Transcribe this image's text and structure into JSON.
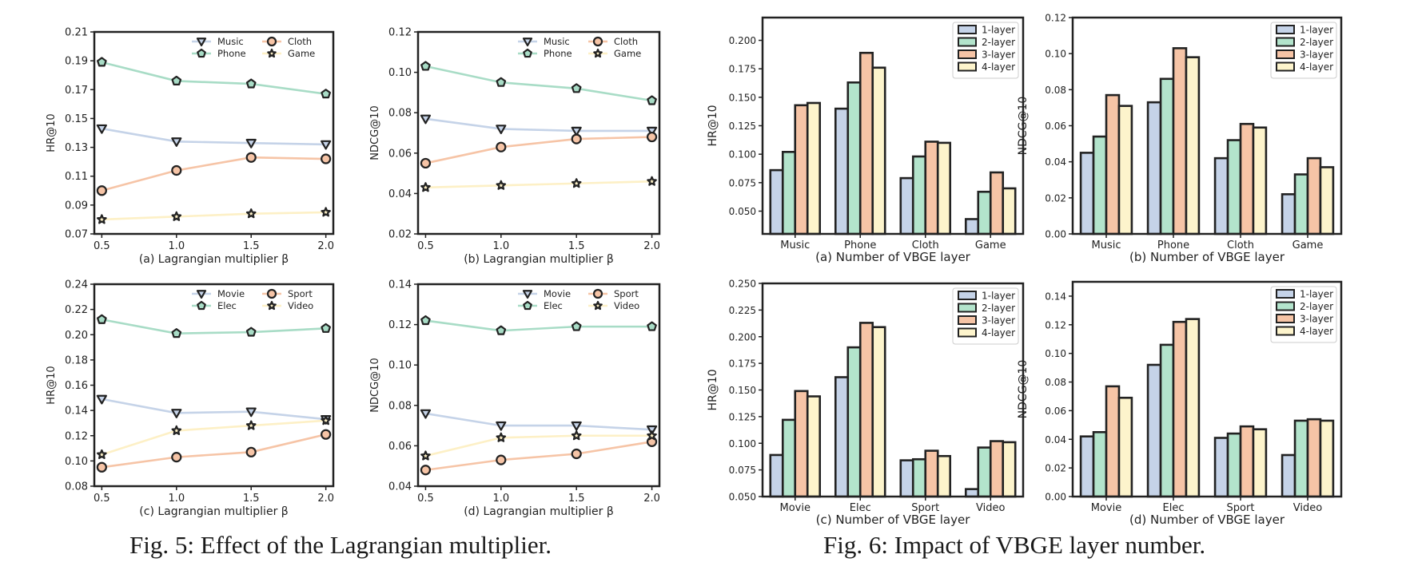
{
  "captions": {
    "fig5": "Fig. 5: Effect of the Lagrangian multiplier.",
    "fig6": "Fig. 6: Impact of VBGE layer number."
  },
  "colors": {
    "Music": "#c5d3e8",
    "Movie": "#c5d3e8",
    "Phone": "#a8dcc6",
    "Elec": "#a8dcc6",
    "Cloth": "#f6c4a6",
    "Sport": "#f6c4a6",
    "Game": "#fdf0c6",
    "Video": "#fdf0c6",
    "1-layer": "#c5d3e8",
    "2-layer": "#b3e4cc",
    "3-layer": "#f6c4a6",
    "4-layer": "#fdf4cc",
    "edge": "#222222"
  },
  "chart_data": [
    {
      "type": "line",
      "title": "(a) Lagrangian multiplier β",
      "xlabel": "(a) Lagrangian multiplier β",
      "ylabel": "HR@10",
      "x": [
        0.5,
        1.0,
        1.5,
        2.0
      ],
      "xticks": [
        "0.5",
        "1.0",
        "1.5",
        "2.0"
      ],
      "ylim": [
        0.07,
        0.21
      ],
      "yticks": [
        "0.07",
        "0.09",
        "0.11",
        "0.13",
        "0.15",
        "0.17",
        "0.19",
        "0.21"
      ],
      "legend_position": "top-right",
      "series": [
        {
          "name": "Music",
          "marker": "triangle",
          "values": [
            0.143,
            0.134,
            0.133,
            0.132
          ]
        },
        {
          "name": "Phone",
          "marker": "pentagon",
          "values": [
            0.189,
            0.176,
            0.174,
            0.167
          ]
        },
        {
          "name": "Cloth",
          "marker": "circle",
          "values": [
            0.1,
            0.114,
            0.123,
            0.122
          ]
        },
        {
          "name": "Game",
          "marker": "star",
          "values": [
            0.08,
            0.082,
            0.084,
            0.085
          ]
        }
      ]
    },
    {
      "type": "line",
      "title": "(b) Lagrangian multiplier β",
      "xlabel": "(b) Lagrangian multiplier β",
      "ylabel": "NDCG@10",
      "x": [
        0.5,
        1.0,
        1.5,
        2.0
      ],
      "xticks": [
        "0.5",
        "1.0",
        "1.5",
        "2.0"
      ],
      "ylim": [
        0.02,
        0.12
      ],
      "yticks": [
        "0.02",
        "0.04",
        "0.06",
        "0.08",
        "0.10",
        "0.12"
      ],
      "legend_position": "top-right",
      "series": [
        {
          "name": "Music",
          "marker": "triangle",
          "values": [
            0.077,
            0.072,
            0.071,
            0.071
          ]
        },
        {
          "name": "Phone",
          "marker": "pentagon",
          "values": [
            0.103,
            0.095,
            0.092,
            0.086
          ]
        },
        {
          "name": "Cloth",
          "marker": "circle",
          "values": [
            0.055,
            0.063,
            0.067,
            0.068
          ]
        },
        {
          "name": "Game",
          "marker": "star",
          "values": [
            0.043,
            0.044,
            0.045,
            0.046
          ]
        }
      ]
    },
    {
      "type": "line",
      "title": "(c) Lagrangian multiplier β",
      "xlabel": "(c) Lagrangian multiplier β",
      "ylabel": "HR@10",
      "x": [
        0.5,
        1.0,
        1.5,
        2.0
      ],
      "xticks": [
        "0.5",
        "1.0",
        "1.5",
        "2.0"
      ],
      "ylim": [
        0.08,
        0.24
      ],
      "yticks": [
        "0.08",
        "0.10",
        "0.12",
        "0.14",
        "0.16",
        "0.18",
        "0.20",
        "0.22",
        "0.24"
      ],
      "legend_position": "top-right",
      "series": [
        {
          "name": "Movie",
          "marker": "triangle",
          "values": [
            0.149,
            0.138,
            0.139,
            0.133
          ]
        },
        {
          "name": "Elec",
          "marker": "pentagon",
          "values": [
            0.212,
            0.201,
            0.202,
            0.205
          ]
        },
        {
          "name": "Sport",
          "marker": "circle",
          "values": [
            0.095,
            0.103,
            0.107,
            0.121
          ]
        },
        {
          "name": "Video",
          "marker": "star",
          "values": [
            0.105,
            0.124,
            0.128,
            0.132
          ]
        }
      ]
    },
    {
      "type": "line",
      "title": "(d) Lagrangian multiplier β",
      "xlabel": "(d) Lagrangian multiplier β",
      "ylabel": "NDCG@10",
      "x": [
        0.5,
        1.0,
        1.5,
        2.0
      ],
      "xticks": [
        "0.5",
        "1.0",
        "1.5",
        "2.0"
      ],
      "ylim": [
        0.04,
        0.14
      ],
      "yticks": [
        "0.04",
        "0.06",
        "0.08",
        "0.10",
        "0.12",
        "0.14"
      ],
      "legend_position": "top-right",
      "series": [
        {
          "name": "Movie",
          "marker": "triangle",
          "values": [
            0.076,
            0.07,
            0.07,
            0.068
          ]
        },
        {
          "name": "Elec",
          "marker": "pentagon",
          "values": [
            0.122,
            0.117,
            0.119,
            0.119
          ]
        },
        {
          "name": "Sport",
          "marker": "circle",
          "values": [
            0.048,
            0.053,
            0.056,
            0.062
          ]
        },
        {
          "name": "Video",
          "marker": "star",
          "values": [
            0.055,
            0.064,
            0.065,
            0.065
          ]
        }
      ]
    },
    {
      "type": "bar",
      "title": "(a) Number of VBGE layer",
      "xlabel": "(a) Number of VBGE layer",
      "ylabel": "HR@10",
      "categories": [
        "Music",
        "Phone",
        "Cloth",
        "Game"
      ],
      "ylim": [
        0.03,
        0.22
      ],
      "yticks": [
        0.05,
        0.075,
        0.1,
        0.125,
        0.15,
        0.175,
        0.2
      ],
      "ytick_labels": [
        "0.050",
        "0.075",
        "0.100",
        "0.125",
        "0.150",
        "0.175",
        "0.200"
      ],
      "legend_position": "top-right",
      "series": [
        {
          "name": "1-layer",
          "values": [
            0.086,
            0.14,
            0.079,
            0.043
          ]
        },
        {
          "name": "2-layer",
          "values": [
            0.102,
            0.163,
            0.098,
            0.067
          ]
        },
        {
          "name": "3-layer",
          "values": [
            0.143,
            0.189,
            0.111,
            0.084
          ]
        },
        {
          "name": "4-layer",
          "values": [
            0.145,
            0.176,
            0.11,
            0.07
          ]
        }
      ]
    },
    {
      "type": "bar",
      "title": "(b) Number of VBGE layer",
      "xlabel": "(b) Number of VBGE layer",
      "ylabel": "NDCG@10",
      "categories": [
        "Music",
        "Phone",
        "Cloth",
        "Game"
      ],
      "ylim": [
        0.0,
        0.12
      ],
      "yticks": [
        0.0,
        0.02,
        0.04,
        0.06,
        0.08,
        0.1,
        0.12
      ],
      "ytick_labels": [
        "0.00",
        "0.02",
        "0.04",
        "0.06",
        "0.08",
        "0.10",
        "0.12"
      ],
      "legend_position": "top-right",
      "series": [
        {
          "name": "1-layer",
          "values": [
            0.045,
            0.073,
            0.042,
            0.022
          ]
        },
        {
          "name": "2-layer",
          "values": [
            0.054,
            0.086,
            0.052,
            0.033
          ]
        },
        {
          "name": "3-layer",
          "values": [
            0.077,
            0.103,
            0.061,
            0.042
          ]
        },
        {
          "name": "4-layer",
          "values": [
            0.071,
            0.098,
            0.059,
            0.037
          ]
        }
      ]
    },
    {
      "type": "bar",
      "title": "(c) Number of VBGE layer",
      "xlabel": "(c) Number of VBGE layer",
      "ylabel": "HR@10",
      "categories": [
        "Movie",
        "Elec",
        "Sport",
        "Video"
      ],
      "ylim": [
        0.05,
        0.25
      ],
      "yticks": [
        0.05,
        0.075,
        0.1,
        0.125,
        0.15,
        0.175,
        0.2,
        0.225,
        0.25
      ],
      "ytick_labels": [
        "0.050",
        "0.075",
        "0.100",
        "0.125",
        "0.150",
        "0.175",
        "0.200",
        "0.225",
        "0.250"
      ],
      "legend_position": "top-right",
      "series": [
        {
          "name": "1-layer",
          "values": [
            0.089,
            0.162,
            0.084,
            0.057
          ]
        },
        {
          "name": "2-layer",
          "values": [
            0.122,
            0.19,
            0.085,
            0.096
          ]
        },
        {
          "name": "3-layer",
          "values": [
            0.149,
            0.213,
            0.093,
            0.102
          ]
        },
        {
          "name": "4-layer",
          "values": [
            0.144,
            0.209,
            0.088,
            0.101
          ]
        }
      ]
    },
    {
      "type": "bar",
      "title": "(d) Number of VBGE layer",
      "xlabel": "(d) Number of VBGE layer",
      "ylabel": "NDCG@10",
      "categories": [
        "Movie",
        "Elec",
        "Sport",
        "Video"
      ],
      "ylim": [
        0.0,
        0.15
      ],
      "yticks": [
        0.0,
        0.02,
        0.04,
        0.06,
        0.08,
        0.1,
        0.12,
        0.14
      ],
      "ytick_labels": [
        "0.00",
        "0.02",
        "0.04",
        "0.06",
        "0.08",
        "0.10",
        "0.12",
        "0.14"
      ],
      "legend_position": "top-right",
      "series": [
        {
          "name": "1-layer",
          "values": [
            0.042,
            0.092,
            0.041,
            0.029
          ]
        },
        {
          "name": "2-layer",
          "values": [
            0.045,
            0.106,
            0.044,
            0.053
          ]
        },
        {
          "name": "3-layer",
          "values": [
            0.077,
            0.122,
            0.049,
            0.054
          ]
        },
        {
          "name": "4-layer",
          "values": [
            0.069,
            0.124,
            0.047,
            0.053
          ]
        }
      ]
    }
  ]
}
